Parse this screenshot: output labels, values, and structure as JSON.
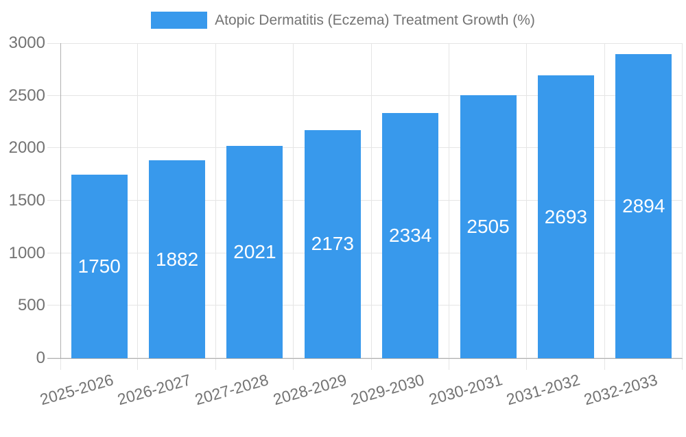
{
  "legend": {
    "label": "Atopic Dermatitis (Eczema) Treatment Growth (%)"
  },
  "colors": {
    "bar": "#3899ec",
    "gridline": "#e5e5e5",
    "axis_line": "#b0b0b0",
    "tick_label": "#737373",
    "value_label": "#ffffff"
  },
  "chart_data": {
    "type": "bar",
    "title": "Atopic Dermatitis (Eczema) Treatment Growth (%)",
    "categories": [
      "2025-2026",
      "2026-2027",
      "2027-2028",
      "2028-2029",
      "2029-2030",
      "2030-2031",
      "2031-2032",
      "2032-2033"
    ],
    "values": [
      1750,
      1882,
      2021,
      2173,
      2334,
      2505,
      2693,
      2894
    ],
    "series": [
      {
        "name": "Atopic Dermatitis (Eczema) Treatment Growth (%)",
        "values": [
          1750,
          1882,
          2021,
          2173,
          2334,
          2505,
          2693,
          2894
        ]
      }
    ],
    "xlabel": "",
    "ylabel": "",
    "ylim": [
      0,
      3000
    ],
    "yticks": [
      0,
      500,
      1000,
      1500,
      2000,
      2500,
      3000
    ],
    "grid": true,
    "legend_position": "top",
    "value_label_position": "inside-center",
    "x_tick_rotation_deg": -16
  }
}
